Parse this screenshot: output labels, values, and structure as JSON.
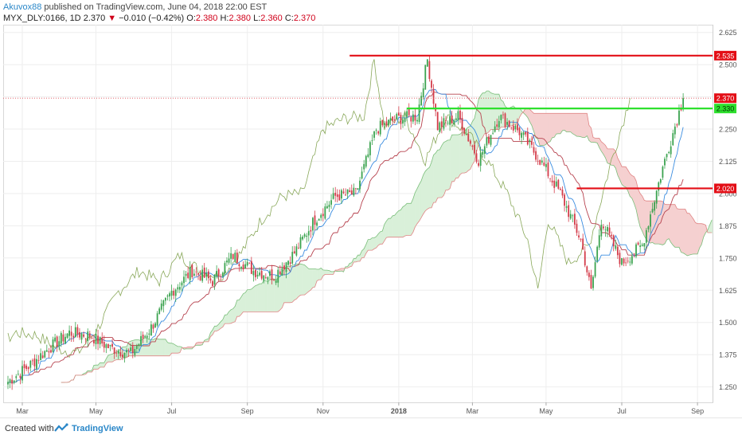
{
  "header": {
    "author": "Akuvox88",
    "published": "published on TradingView.com, June 04, 2018 22:00 EST"
  },
  "symbol": {
    "name": "MYX_DLY:0166, 1D",
    "last": "2.370",
    "arrow": "▼",
    "change": "−0.010 (−0.42%)",
    "o_label": "O:",
    "o": "2.380",
    "h_label": "H:",
    "h": "2.380",
    "l_label": "L:",
    "l": "2.360",
    "c_label": "C:",
    "c": "2.370"
  },
  "footer": {
    "created": "Created with",
    "brand": "TradingView"
  },
  "colors": {
    "up": "#3ba34f",
    "down": "#d43c4a",
    "level_red": "#e30e16",
    "level_green": "#2ee02e",
    "cloud_green": "#d9f0d9",
    "cloud_red": "#f5d0d0",
    "lagging": "#89a85a",
    "tenkan": "#3b8de0",
    "kijun": "#b7434f",
    "spanA": "#7cbf7c",
    "spanB": "#e08585"
  },
  "chart_data": {
    "type": "candlestick",
    "x_ticks": [
      "Mar",
      "May",
      "Jul",
      "Sep",
      "Nov",
      "2018",
      "Mar",
      "May",
      "Jul",
      "Sep"
    ],
    "y_ticks": [
      "2.625",
      "2.500",
      "2.375",
      "2.250",
      "2.125",
      "2.000",
      "1.875",
      "1.750",
      "1.625",
      "1.500",
      "1.375",
      "1.250"
    ],
    "ylim": [
      1.19,
      2.655
    ],
    "price_labels": [
      "2.535",
      "2.370",
      "2.330",
      "2.020"
    ],
    "levels": [
      {
        "value": 2.535,
        "color": "red",
        "from": "Dec",
        "to": "end"
      },
      {
        "value": 2.33,
        "color": "green",
        "from": "Jan",
        "to": "end"
      },
      {
        "value": 2.02,
        "color": "red",
        "from": "May",
        "to": "end"
      }
    ],
    "last_price": 2.37,
    "close_anchors": [
      [
        0,
        1.27
      ],
      [
        10,
        1.33
      ],
      [
        20,
        1.4
      ],
      [
        30,
        1.46
      ],
      [
        40,
        1.45
      ],
      [
        50,
        1.4
      ],
      [
        60,
        1.38
      ],
      [
        70,
        1.48
      ],
      [
        80,
        1.62
      ],
      [
        90,
        1.7
      ],
      [
        100,
        1.66
      ],
      [
        110,
        1.76
      ],
      [
        120,
        1.7
      ],
      [
        130,
        1.68
      ],
      [
        140,
        1.77
      ],
      [
        150,
        1.9
      ],
      [
        160,
        1.99
      ],
      [
        170,
        2.0
      ],
      [
        180,
        2.25
      ],
      [
        190,
        2.29
      ],
      [
        200,
        2.3
      ],
      [
        205,
        2.52
      ],
      [
        210,
        2.26
      ],
      [
        220,
        2.3
      ],
      [
        230,
        2.13
      ],
      [
        240,
        2.3
      ],
      [
        250,
        2.24
      ],
      [
        260,
        2.13
      ],
      [
        270,
        2.0
      ],
      [
        280,
        1.82
      ],
      [
        285,
        1.62
      ],
      [
        290,
        1.9
      ],
      [
        300,
        1.73
      ],
      [
        310,
        1.8
      ],
      [
        320,
        2.1
      ],
      [
        330,
        2.37
      ]
    ]
  }
}
